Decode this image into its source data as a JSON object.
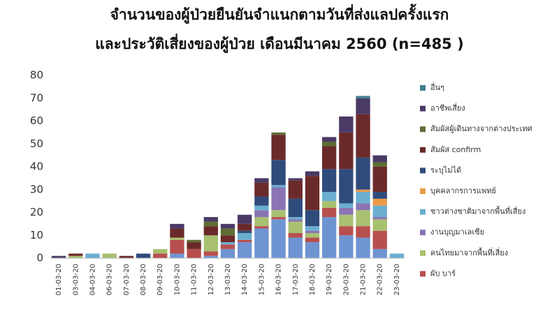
{
  "chart_data": {
    "type": "stacked_bar",
    "title": "จำนวนของผู้ป่วยยืนยันจำแนกตามวันที่ส่งแลปครั้งแรก",
    "subtitle": "และประวัติเสี่ยงของผู้ป่วย เดือนมีนาคม 2560  (n=485 )",
    "categories": [
      "01-03-20",
      "03-03-20",
      "04-03-20",
      "06-03-20",
      "07-03-20",
      "08-03-20",
      "09-03-20",
      "10-03-20",
      "11-03-20",
      "12-03-20",
      "13-03-20",
      "14-03-20",
      "15-03-20",
      "16-03-20",
      "17-03-20",
      "18-03-20",
      "19-03-20",
      "20-03-20",
      "21-03-20",
      "22-03-20",
      "23-03-20"
    ],
    "series": [
      {
        "color": "#6f94d2",
        "values": [
          0,
          0,
          0,
          0,
          0,
          0,
          0,
          2,
          0,
          1,
          4,
          7,
          13,
          17,
          9,
          7,
          18,
          10,
          9,
          4,
          0
        ]
      },
      {
        "name": "ผับ บาร์",
        "color": "#b84f4f",
        "values": [
          0,
          0,
          0,
          0,
          0,
          0,
          2,
          6,
          4,
          2,
          2,
          1,
          1,
          1,
          2,
          2,
          4,
          4,
          5,
          8,
          0
        ]
      },
      {
        "name": "คนไทยมาจากพื้นที่เสี่ยง",
        "color": "#a8c070",
        "values": [
          0,
          1,
          0,
          2,
          0,
          0,
          2,
          1,
          0,
          7,
          0,
          0,
          4,
          3,
          5,
          2,
          3,
          5,
          7,
          5,
          0
        ]
      },
      {
        "name": "งานบุญมาเลเซีย",
        "color": "#8a74b4",
        "values": [
          0,
          0,
          0,
          0,
          0,
          0,
          0,
          0,
          0,
          0,
          0,
          0,
          3,
          10,
          1,
          1,
          0,
          3,
          3,
          1,
          0
        ]
      },
      {
        "name": "ชาวต่างชาติมาจากพื้นที่เสี่ยง",
        "color": "#6aaed0",
        "values": [
          0,
          0,
          2,
          0,
          0,
          0,
          0,
          0,
          0,
          0,
          1,
          3,
          2,
          1,
          1,
          2,
          4,
          2,
          5,
          5,
          2
        ]
      },
      {
        "name": "บุคคลากรการแพทย์",
        "color": "#ec9a48",
        "values": [
          0,
          0,
          0,
          0,
          0,
          0,
          0,
          0,
          0,
          0,
          0,
          0,
          0,
          0,
          0,
          0,
          0,
          0,
          1,
          3,
          0
        ]
      },
      {
        "name": "ระบุไม่ได้",
        "color": "#2f4b7c",
        "values": [
          0,
          0,
          0,
          0,
          0,
          2,
          0,
          0,
          0,
          0,
          0,
          1,
          4,
          11,
          8,
          7,
          10,
          15,
          14,
          3,
          0
        ]
      },
      {
        "name": "สัมผัส confirm",
        "color": "#6b2a2a",
        "values": [
          0,
          1,
          0,
          0,
          1,
          0,
          0,
          4,
          3,
          4,
          3,
          3,
          6,
          11,
          8,
          15,
          10,
          16,
          19,
          11,
          0
        ]
      },
      {
        "name": "สัมผัสผู้เดินทางจากต่างประเทศ",
        "color": "#5e6e34",
        "values": [
          0,
          0,
          0,
          0,
          0,
          0,
          0,
          0,
          1,
          2,
          3,
          0,
          0,
          1,
          0,
          0,
          2,
          0,
          0,
          2,
          0
        ]
      },
      {
        "name": "อาชีพเสี่ยง",
        "color": "#4a3a66",
        "values": [
          1,
          0,
          0,
          0,
          0,
          0,
          0,
          2,
          0,
          2,
          2,
          4,
          2,
          0,
          1,
          2,
          2,
          7,
          7,
          3,
          0
        ]
      },
      {
        "name": "อื่นๆ",
        "color": "#3f7f8e",
        "values": [
          0,
          0,
          0,
          0,
          0,
          0,
          0,
          0,
          0,
          0,
          0,
          0,
          0,
          0,
          0,
          0,
          0,
          0,
          1,
          0,
          0
        ]
      }
    ],
    "ylim": [
      0,
      80
    ],
    "yticks": [
      0,
      10,
      20,
      30,
      40,
      50,
      60,
      70,
      80
    ],
    "grid": false,
    "legend": "right"
  }
}
